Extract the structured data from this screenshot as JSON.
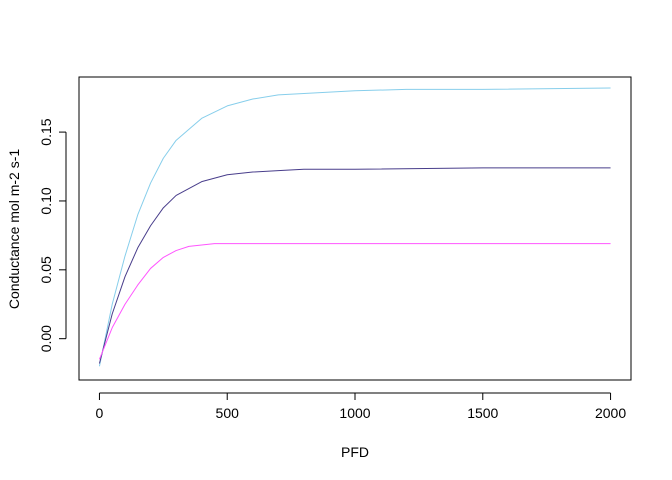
{
  "chart_data": {
    "type": "line",
    "title": "",
    "xlabel": "PFD",
    "ylabel": "Conductance mol m-2 s-1",
    "xlim": [
      -80,
      2080
    ],
    "ylim": [
      -0.03,
      0.19
    ],
    "x_ticks": [
      0,
      500,
      1000,
      1500,
      2000
    ],
    "x_tick_labels": [
      "0",
      "500",
      "1000",
      "1500",
      "2000"
    ],
    "y_ticks": [
      0.0,
      0.05,
      0.1,
      0.15
    ],
    "y_tick_labels": [
      "0.00",
      "0.05",
      "0.10",
      "0.15"
    ],
    "grid": false,
    "legend": "none",
    "series": [
      {
        "color": "#87CEEB",
        "x": [
          0,
          50,
          100,
          150,
          200,
          250,
          300,
          400,
          500,
          600,
          700,
          800,
          1000,
          1200,
          1500,
          2000
        ],
        "values": [
          -0.02,
          0.025,
          0.06,
          0.09,
          0.113,
          0.131,
          0.144,
          0.16,
          0.169,
          0.174,
          0.177,
          0.178,
          0.18,
          0.181,
          0.181,
          0.182
        ]
      },
      {
        "color": "#483D8B",
        "x": [
          0,
          50,
          100,
          150,
          200,
          250,
          300,
          400,
          500,
          600,
          700,
          800,
          1000,
          1500,
          2000
        ],
        "values": [
          -0.018,
          0.018,
          0.045,
          0.066,
          0.082,
          0.095,
          0.104,
          0.114,
          0.119,
          0.121,
          0.122,
          0.123,
          0.123,
          0.124,
          0.124
        ]
      },
      {
        "color": "#FF55FF",
        "x": [
          0,
          50,
          100,
          150,
          200,
          250,
          300,
          350,
          400,
          450,
          500,
          1000,
          1500,
          2000
        ],
        "values": [
          -0.015,
          0.008,
          0.025,
          0.039,
          0.051,
          0.059,
          0.064,
          0.067,
          0.068,
          0.069,
          0.069,
          0.069,
          0.069,
          0.069
        ]
      }
    ]
  }
}
